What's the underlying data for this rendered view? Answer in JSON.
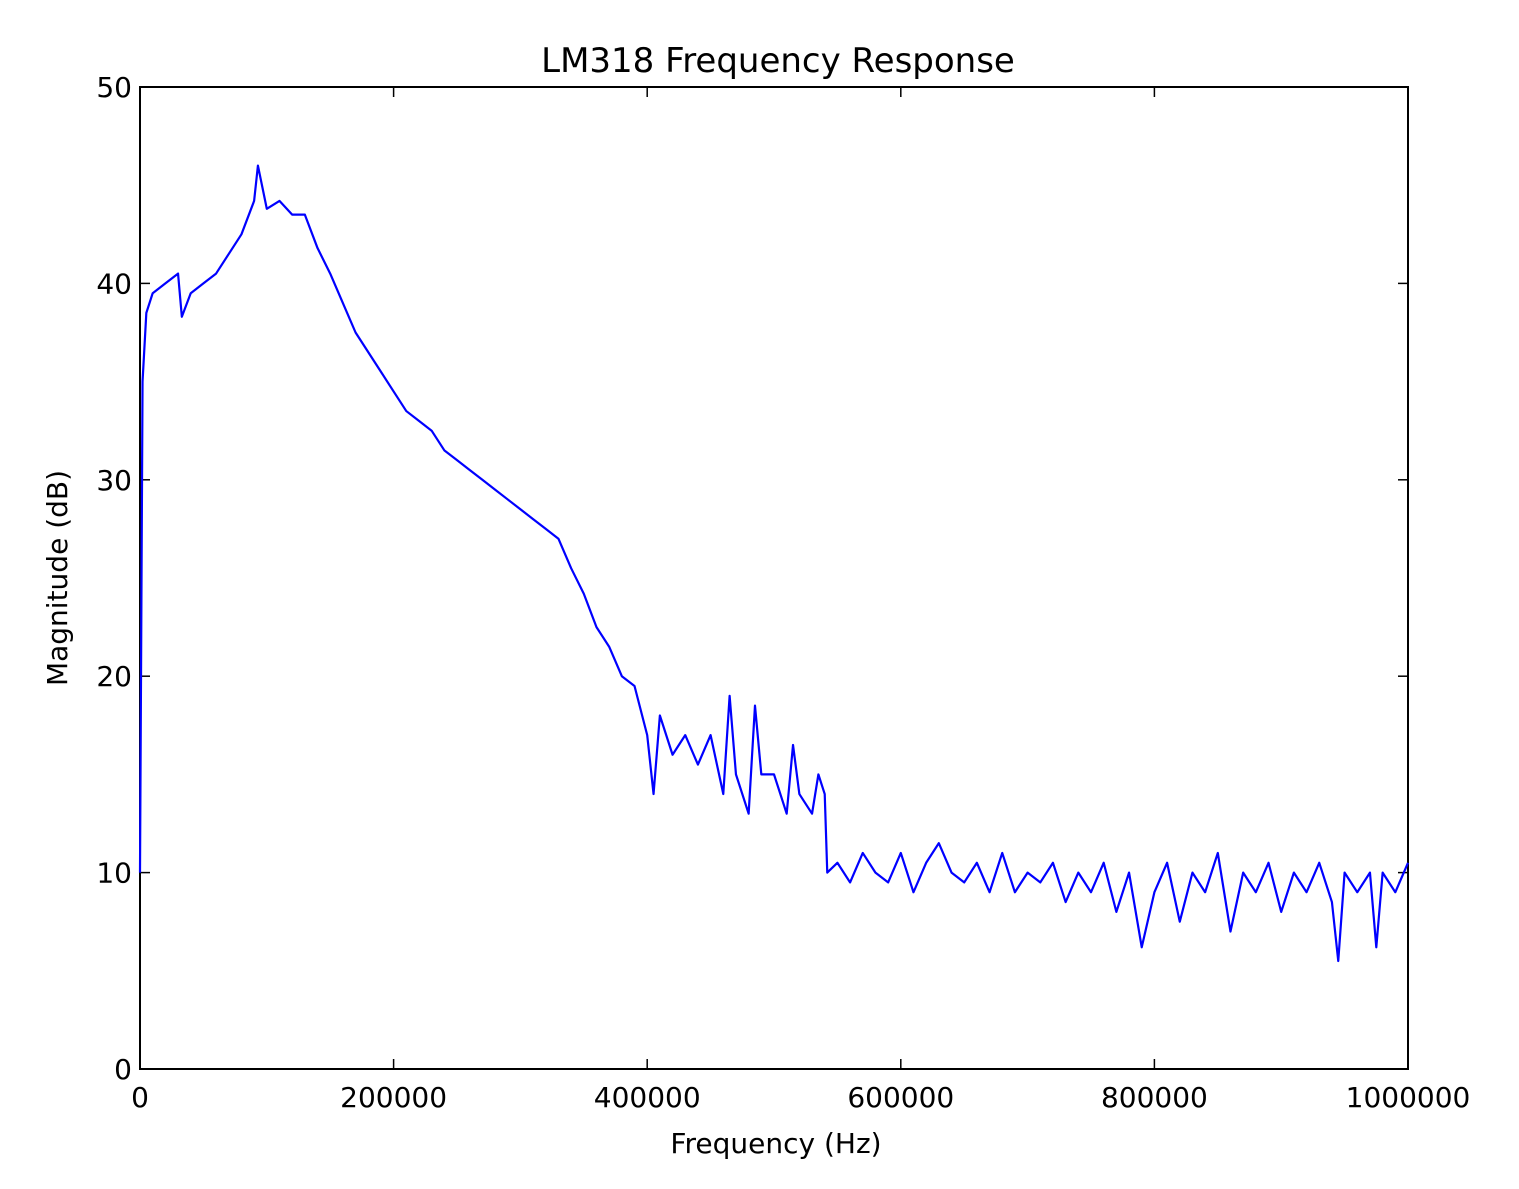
{
  "chart_data": {
    "type": "line",
    "title": "LM318 Frequency Response",
    "xlabel": "Frequency (Hz)",
    "ylabel": "Magnitude (dB)",
    "xlim": [
      0,
      1000000
    ],
    "ylim": [
      0,
      50
    ],
    "xticks": [
      0,
      200000,
      400000,
      600000,
      800000,
      1000000
    ],
    "yticks": [
      0,
      10,
      20,
      30,
      40,
      50
    ],
    "grid": false,
    "series": [
      {
        "color": "#0000ff",
        "x": [
          0,
          2000,
          5000,
          10000,
          20000,
          30000,
          33000,
          40000,
          50000,
          60000,
          70000,
          80000,
          90000,
          93000,
          100000,
          110000,
          120000,
          130000,
          140000,
          150000,
          160000,
          170000,
          180000,
          190000,
          200000,
          210000,
          220000,
          230000,
          240000,
          250000,
          260000,
          270000,
          280000,
          290000,
          300000,
          310000,
          320000,
          330000,
          340000,
          350000,
          360000,
          370000,
          380000,
          390000,
          400000,
          405000,
          410000,
          420000,
          430000,
          440000,
          450000,
          460000,
          465000,
          470000,
          480000,
          485000,
          490000,
          500000,
          510000,
          515000,
          520000,
          530000,
          535000,
          540000,
          542000,
          550000,
          560000,
          570000,
          580000,
          590000,
          600000,
          610000,
          620000,
          630000,
          640000,
          650000,
          660000,
          670000,
          680000,
          690000,
          700000,
          710000,
          720000,
          730000,
          740000,
          750000,
          760000,
          770000,
          780000,
          790000,
          800000,
          810000,
          820000,
          830000,
          840000,
          850000,
          860000,
          870000,
          880000,
          890000,
          900000,
          910000,
          920000,
          930000,
          940000,
          945000,
          950000,
          960000,
          970000,
          975000,
          980000,
          990000,
          1000000
        ],
        "values": [
          10,
          35,
          38.5,
          39.5,
          40,
          40.5,
          38.3,
          39.5,
          40,
          40.5,
          41.5,
          42.5,
          44.2,
          46,
          43.8,
          44.2,
          43.5,
          43.5,
          41.8,
          40.5,
          39,
          37.5,
          36.5,
          35.5,
          34.5,
          33.5,
          33,
          32.5,
          31.5,
          31,
          30.5,
          30,
          29.5,
          29,
          28.5,
          28,
          27.5,
          27,
          25.5,
          24.2,
          22.5,
          21.5,
          20,
          19.5,
          17,
          14,
          18,
          16,
          17,
          15.5,
          17,
          14,
          19,
          15,
          13,
          18.5,
          15,
          15,
          13,
          16.5,
          14,
          13,
          15,
          14,
          10,
          10.5,
          9.5,
          11,
          10,
          9.5,
          11,
          9,
          10.5,
          11.5,
          10,
          9.5,
          10.5,
          9,
          11,
          9,
          10,
          9.5,
          10.5,
          8.5,
          10,
          9,
          10.5,
          8,
          10,
          6.2,
          9,
          10.5,
          7.5,
          10,
          9,
          11,
          7,
          10,
          9,
          10.5,
          8,
          10,
          9,
          10.5,
          8.5,
          5.5,
          10,
          9,
          10,
          6.2,
          10,
          9,
          10.5
        ]
      }
    ]
  }
}
